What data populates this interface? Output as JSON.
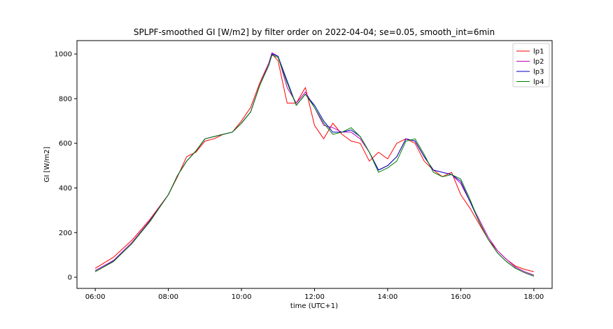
{
  "chart_data": {
    "type": "line",
    "title": "SPLPF-smoothed GI [W/m2] by filter order on 2022-04-04; se=0.05, smooth_int=6min",
    "xlabel": "time (UTC+1)",
    "ylabel": "GI [W/m2]",
    "xlim": [
      "05:30",
      "18:30"
    ],
    "ylim": [
      -50,
      1060
    ],
    "xticks": [
      "06:00",
      "08:00",
      "10:00",
      "12:00",
      "14:00",
      "16:00",
      "18:00"
    ],
    "yticks": [
      0,
      200,
      400,
      600,
      800,
      1000
    ],
    "grid": false,
    "legend": "top-right",
    "x": [
      "06:00",
      "06:30",
      "07:00",
      "07:30",
      "08:00",
      "08:15",
      "08:30",
      "08:45",
      "09:00",
      "09:15",
      "09:30",
      "09:45",
      "10:00",
      "10:15",
      "10:30",
      "10:45",
      "10:50",
      "11:00",
      "11:15",
      "11:30",
      "11:45",
      "12:00",
      "12:15",
      "12:30",
      "12:45",
      "13:00",
      "13:15",
      "13:30",
      "13:45",
      "14:00",
      "14:15",
      "14:30",
      "14:45",
      "15:00",
      "15:15",
      "15:30",
      "15:45",
      "16:00",
      "16:15",
      "16:30",
      "16:45",
      "17:00",
      "17:15",
      "17:30",
      "17:45",
      "18:00"
    ],
    "series": [
      {
        "name": "lp1",
        "color": "#ff0000",
        "values": [
          40,
          90,
          165,
          260,
          370,
          450,
          540,
          560,
          610,
          620,
          640,
          650,
          700,
          760,
          870,
          960,
          1000,
          970,
          780,
          780,
          850,
          680,
          620,
          690,
          640,
          610,
          600,
          520,
          560,
          530,
          600,
          620,
          600,
          520,
          480,
          450,
          470,
          370,
          310,
          240,
          170,
          120,
          80,
          50,
          35,
          25
        ]
      },
      {
        "name": "lp2",
        "color": "#bf00bf",
        "values": [
          30,
          75,
          155,
          255,
          370,
          455,
          520,
          565,
          620,
          630,
          640,
          650,
          690,
          740,
          860,
          960,
          1005,
          990,
          850,
          780,
          830,
          760,
          680,
          670,
          650,
          650,
          620,
          560,
          480,
          500,
          540,
          620,
          610,
          540,
          480,
          470,
          460,
          420,
          340,
          260,
          180,
          120,
          80,
          45,
          25,
          10
        ]
      },
      {
        "name": "lp3",
        "color": "#0000bf",
        "values": [
          25,
          72,
          150,
          252,
          370,
          455,
          520,
          565,
          620,
          630,
          640,
          650,
          690,
          740,
          860,
          950,
          1000,
          990,
          880,
          770,
          820,
          770,
          700,
          650,
          650,
          660,
          630,
          560,
          480,
          500,
          540,
          620,
          610,
          540,
          480,
          470,
          460,
          430,
          340,
          250,
          170,
          110,
          70,
          40,
          20,
          5
        ]
      },
      {
        "name": "lp4",
        "color": "#008000",
        "values": [
          25,
          70,
          150,
          250,
          370,
          455,
          520,
          565,
          620,
          630,
          640,
          650,
          690,
          740,
          860,
          950,
          995,
          985,
          870,
          770,
          820,
          760,
          690,
          640,
          650,
          670,
          630,
          560,
          470,
          490,
          520,
          610,
          620,
          550,
          470,
          450,
          460,
          440,
          350,
          250,
          170,
          110,
          70,
          40,
          20,
          5
        ]
      }
    ]
  }
}
